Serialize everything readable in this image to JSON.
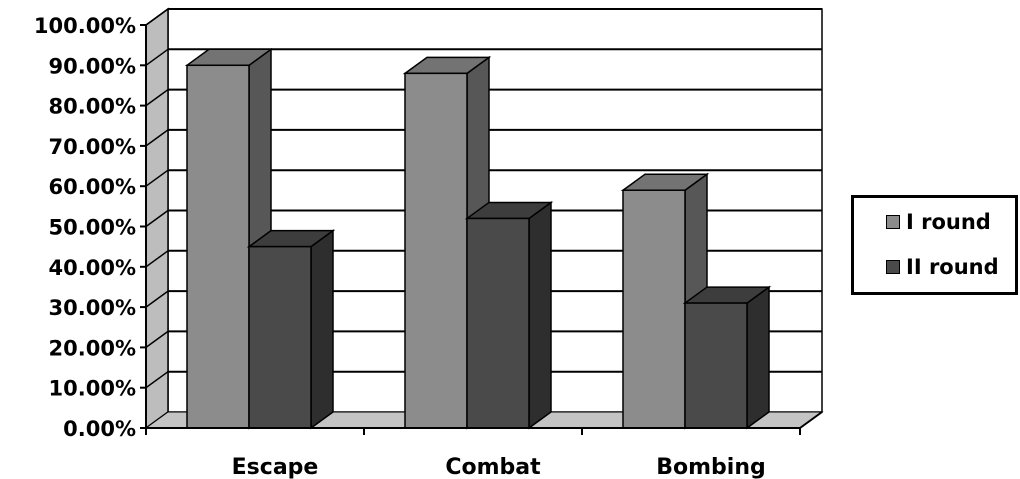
{
  "chart_data": {
    "type": "bar",
    "categories": [
      "Escape",
      "Combat",
      "Bombing"
    ],
    "series": [
      {
        "name": "I round",
        "values": [
          90,
          88,
          59
        ],
        "color": "#8c8c8c"
      },
      {
        "name": "II round",
        "values": [
          45,
          52,
          31
        ],
        "color": "#4a4a4a"
      }
    ],
    "ylim": [
      0,
      100
    ],
    "y_ticks": [
      "0.00%",
      "10.00%",
      "20.00%",
      "30.00%",
      "40.00%",
      "50.00%",
      "60.00%",
      "70.00%",
      "80.00%",
      "90.00%",
      "100.00%"
    ],
    "grid": true,
    "legend_position": "right",
    "style": "3d-column"
  }
}
